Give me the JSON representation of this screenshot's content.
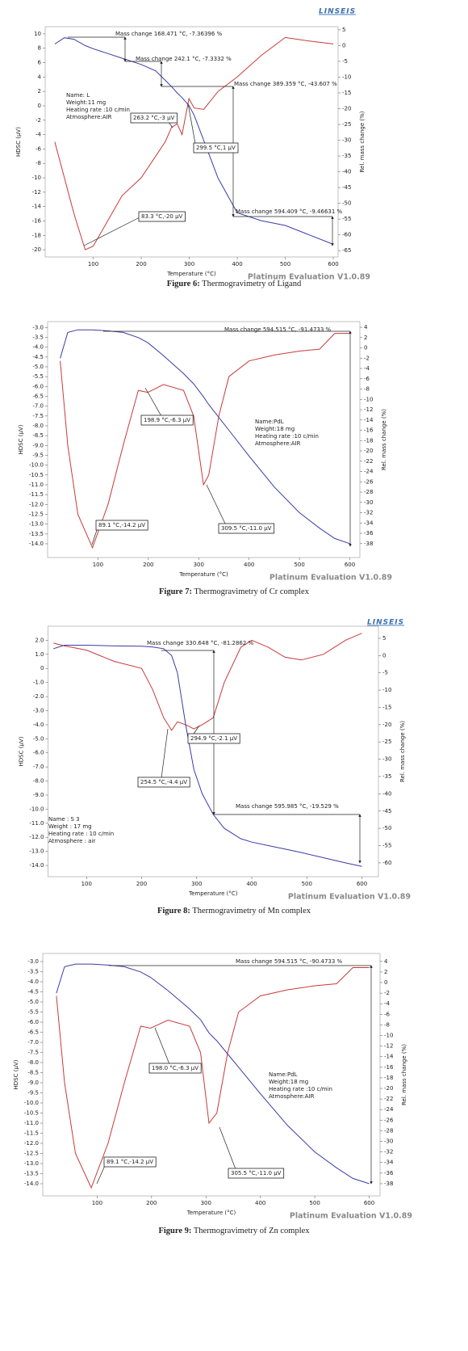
{
  "chart_data": [
    {
      "type": "line",
      "logo": "LINSEIS",
      "x_label": "Temperature (°C)",
      "y_label": "HDSC (µV)",
      "y2_label": "Rel. mass change (%)",
      "footer": "Platinum Evaluation V1.0.89",
      "caption_label": "Figure 6:",
      "caption": "Thermogravimetry of Ligand",
      "info": [
        "Name: L",
        "Weight:11 mg",
        "Heating rate :10 c/min",
        "Atmosphere:AIR"
      ],
      "annotations": [
        "Mass change 168.471 °C,  -7.36396 %",
        "Mass change 242.1 °C,  -7.3332 %",
        "Mass change 389.359 °C,  -43.607 %",
        "Mass change 594.409 °C,  -9.46631 %",
        "263.2 °C,-3 µV",
        "299.5 °C,1 µV",
        "83.3 °C,-20 µV"
      ],
      "x": [
        20,
        40,
        60,
        83.3,
        100,
        130,
        160,
        200,
        230,
        250,
        263.2,
        275,
        285,
        299.5,
        310,
        330,
        360,
        400,
        450,
        500,
        550,
        600
      ],
      "series": [
        {
          "name": "HDSC",
          "color": "#c83a3a",
          "values": [
            -5,
            -10,
            -15,
            -20,
            -19.5,
            -16,
            -12.5,
            -10,
            -7,
            -5,
            -3,
            -2.5,
            -4,
            1,
            -0.3,
            -0.5,
            2,
            4,
            7,
            9.5,
            9,
            8.6
          ]
        },
        {
          "name": "Rel. mass change",
          "color": "#3b3ba6",
          "axis": "y2",
          "values": [
            0.5,
            2.5,
            2,
            0,
            -1,
            -2.5,
            -4,
            -6,
            -8,
            -11,
            -13,
            -15,
            -16.5,
            -19,
            -22,
            -30,
            -42,
            -53,
            -55.5,
            -57,
            -60,
            -63
          ]
        }
      ],
      "xlim": [
        0,
        610
      ],
      "xticks": [
        100,
        200,
        300,
        400,
        500,
        600
      ],
      "ylim": [
        -21,
        11
      ],
      "yticks": [
        10,
        8,
        6,
        4,
        2,
        0,
        -2,
        -4,
        -6,
        -8,
        -10,
        -12,
        -14,
        -16,
        -18,
        -20
      ],
      "y2lim": [
        -67,
        6
      ],
      "y2ticks": [
        5,
        0,
        -5,
        -10,
        -15,
        -20,
        -25,
        -30,
        -35,
        -40,
        -45,
        -50,
        -55,
        -60,
        -65
      ]
    },
    {
      "type": "line",
      "x_label": "Temperature (°C)",
      "y_label": "HDSC (µV)",
      "y2_label": "Rel. mass change (%)",
      "footer": "Platinum Evaluation V1.0.89",
      "caption_label": "Figure 7:",
      "caption": "Thermogravimetry of Cr complex",
      "info": [
        "Name:PdL",
        "Weight:18 mg",
        "Heating rate :10 c/min",
        "Atmosphere:AIR"
      ],
      "annotations": [
        "Mass change 594.515 °C,  -91.4733 %",
        "198.9 °C,-6.3 µV",
        "89.1 °C,-14.2 µV",
        "309.5 °C,-11.0 µV"
      ],
      "x": [
        25,
        40,
        60,
        89.1,
        120,
        150,
        180,
        198.9,
        230,
        270,
        290,
        309.5,
        320,
        340,
        360,
        400,
        450,
        500,
        540,
        570,
        600
      ],
      "series": [
        {
          "name": "HDSC",
          "color": "#c83a3a",
          "values": [
            -4.7,
            -9,
            -12.5,
            -14.2,
            -12,
            -9,
            -6.2,
            -6.3,
            -5.9,
            -6.2,
            -7.5,
            -11,
            -10.5,
            -7.5,
            -5.5,
            -4.7,
            -4.4,
            -4.2,
            -4.1,
            -3.3,
            -3.3
          ]
        },
        {
          "name": "Rel. mass change",
          "color": "#3b3ba6",
          "axis": "y2",
          "values": [
            -2,
            3,
            3.5,
            3.5,
            3.3,
            3,
            2,
            1,
            -1.5,
            -5,
            -7,
            -9.5,
            -11,
            -13.5,
            -16,
            -21,
            -27,
            -32,
            -35,
            -37,
            -38
          ]
        }
      ],
      "xlim": [
        0,
        620
      ],
      "xticks": [
        100,
        200,
        300,
        400,
        500,
        600
      ],
      "ylim": [
        -14.7,
        -2.7
      ],
      "yticks": [
        {
          "value": -3,
          "label": "-3.0"
        },
        -3.5,
        {
          "value": -4,
          "label": "-4.0"
        },
        -4.5,
        {
          "value": -5,
          "label": "-5.0"
        },
        -5.5,
        {
          "value": -6,
          "label": "-6.0"
        },
        -6.5,
        {
          "value": -7,
          "label": "-7.0"
        },
        -7.5,
        {
          "value": -8,
          "label": "-8.0"
        },
        -8.5,
        {
          "value": -9,
          "label": "-9.0"
        },
        -9.5,
        {
          "value": -10,
          "label": "-10.0"
        },
        -10.5,
        {
          "value": -11,
          "label": "-11.0"
        },
        -11.5,
        {
          "value": -12,
          "label": "-12.0"
        },
        -12.5,
        {
          "value": -13,
          "label": "-13.0"
        },
        -13.5,
        {
          "value": -14,
          "label": "-14.0"
        }
      ],
      "y2lim": [
        -40.7,
        5.1
      ],
      "y2ticks": [
        4,
        2,
        0,
        -2,
        -4,
        -6,
        -8,
        -10,
        -12,
        -14,
        -16,
        -18,
        -20,
        -22,
        -24,
        -26,
        -28,
        -30,
        -32,
        -34,
        -36,
        -38
      ]
    },
    {
      "type": "line",
      "logo": "LINSEIS",
      "x_label": "Temperature (°C)",
      "y_label": "HDSC (µV)",
      "y2_label": "Rel. mass change (%)",
      "footer": "Platinum Evaluation V1.0.89",
      "caption_label": "Figure 8:",
      "caption": "Thermogravimetry of Mn complex",
      "info": [
        "Name : S 3",
        "Weight : 17 mg",
        "Heating rate : 10 c/min",
        "Atmosphere : air"
      ],
      "annotations": [
        "Mass change 330.648 °C,  -81.2862 %",
        "294.9 °C,-2.1 µV",
        "254.5 °C,-4.4 µV",
        "Mass change 595.985 °C,  -19.529 %"
      ],
      "x": [
        40,
        60,
        100,
        150,
        200,
        220,
        240,
        254.5,
        265,
        280,
        294.9,
        310,
        330,
        350,
        380,
        400,
        430,
        460,
        490,
        530,
        570,
        600
      ],
      "series": [
        {
          "name": "HDSC",
          "color": "#c83a3a",
          "values": [
            1.8,
            1.6,
            1.3,
            0.5,
            0,
            -1.5,
            -3.5,
            -4.4,
            -3.8,
            -4,
            -4.3,
            -4,
            -3.5,
            -1,
            1.5,
            2,
            1.5,
            0.8,
            0.6,
            1,
            2,
            2.5
          ]
        },
        {
          "name": "Rel. mass change",
          "color": "#3b3ba6",
          "axis": "y2",
          "values": [
            2,
            3,
            3,
            2.8,
            2.7,
            2.5,
            2,
            0,
            -5,
            -20,
            -33,
            -40,
            -46,
            -50,
            -53,
            -54,
            -55,
            -56,
            -57,
            -58.5,
            -60,
            -61
          ]
        }
      ],
      "xlim": [
        30,
        630
      ],
      "xticks": [
        100,
        200,
        300,
        400,
        500,
        600
      ],
      "ylim": [
        -14.8,
        3
      ],
      "yticks": [
        {
          "value": 2,
          "label": "2.0"
        },
        {
          "value": 1,
          "label": "1.0"
        },
        0,
        {
          "value": -1,
          "label": "-1.0"
        },
        {
          "value": -2,
          "label": "-2.0"
        },
        {
          "value": -3,
          "label": "-3.0"
        },
        {
          "value": -4,
          "label": "-4.0"
        },
        {
          "value": -5,
          "label": "-5.0"
        },
        {
          "value": -6,
          "label": "-6.0"
        },
        {
          "value": -7,
          "label": "-7.0"
        },
        {
          "value": -8,
          "label": "-8.0"
        },
        {
          "value": -9,
          "label": "-9.0"
        },
        {
          "value": -10,
          "label": "-10.0"
        },
        {
          "value": -11,
          "label": "-11.0"
        },
        {
          "value": -12,
          "label": "-12.0"
        },
        {
          "value": -13,
          "label": "-13.0"
        },
        {
          "value": -14,
          "label": "-14.0"
        }
      ],
      "y2lim": [
        -64,
        8.5
      ],
      "y2ticks": [
        5,
        0,
        -5,
        -10,
        -15,
        -20,
        -25,
        -30,
        -35,
        -40,
        -45,
        -50,
        -55,
        -60
      ]
    },
    {
      "type": "line",
      "x_label": "Temperature (°C)",
      "y_label": "HDSC (µV)",
      "y2_label": "Rel. mass change (%)",
      "footer": "Platinum Evaluation V1.0.89",
      "caption_label": "Figure 9:",
      "caption": "Thermogravimetry of Zn complex",
      "info": [
        "Name:PdL",
        "Weight:18 mg",
        "Heating rate :10 c/min",
        "Atmosphere:AIR"
      ],
      "annotations": [
        "Mass change 594.515 °C,  -90.4733 %",
        "198.0 °C,-6.3 µV",
        "89.1 °C,-14.2 µV",
        "305.5 °C,-11.0 µV"
      ],
      "x": [
        25,
        40,
        60,
        89.1,
        120,
        150,
        180,
        198,
        230,
        270,
        290,
        305.5,
        320,
        340,
        360,
        400,
        450,
        500,
        540,
        570,
        600
      ],
      "series": [
        {
          "name": "HDSC",
          "color": "#c83a3a",
          "values": [
            -4.7,
            -9,
            -12.5,
            -14.2,
            -12,
            -9,
            -6.2,
            -6.3,
            -5.9,
            -6.2,
            -7.5,
            -11,
            -10.5,
            -7.5,
            -5.5,
            -4.7,
            -4.4,
            -4.2,
            -4.1,
            -3.3,
            -3.3
          ]
        },
        {
          "name": "Rel. mass change",
          "color": "#3b3ba6",
          "axis": "y2",
          "values": [
            -2,
            3,
            3.5,
            3.5,
            3.3,
            3,
            2,
            1,
            -1.5,
            -5,
            -7,
            -9.5,
            -11,
            -13.5,
            -16,
            -21,
            -27,
            -32,
            -35,
            -37,
            -38
          ]
        }
      ],
      "xlim": [
        0,
        620
      ],
      "xticks": [
        100,
        200,
        300,
        400,
        500,
        600
      ],
      "ylim": [
        -14.6,
        -2.6
      ],
      "yticks": [
        {
          "value": -3,
          "label": "-3.0"
        },
        -3.5,
        {
          "value": -4,
          "label": "-4.0"
        },
        -4.5,
        {
          "value": -5,
          "label": "-5.0"
        },
        -5.5,
        {
          "value": -6,
          "label": "-6.0"
        },
        -6.5,
        {
          "value": -7,
          "label": "-7.0"
        },
        -7.5,
        {
          "value": -8,
          "label": "-8.0"
        },
        -8.5,
        {
          "value": -9,
          "label": "-9.0"
        },
        -9.5,
        {
          "value": -10,
          "label": "-10.0"
        },
        -10.5,
        {
          "value": -11,
          "label": "-11.0"
        },
        -11.5,
        {
          "value": -12,
          "label": "-12.0"
        },
        -12.5,
        {
          "value": -13,
          "label": "-13.0"
        },
        -13.5,
        {
          "value": -14,
          "label": "-14.0"
        }
      ],
      "y2lim": [
        -40.3,
        5.5
      ],
      "y2ticks": [
        4,
        2,
        0,
        -2,
        -4,
        -6,
        -8,
        -10,
        -12,
        -14,
        -16,
        -18,
        -20,
        -22,
        -24,
        -26,
        -28,
        -30,
        -32,
        -34,
        -36,
        -38
      ]
    }
  ]
}
